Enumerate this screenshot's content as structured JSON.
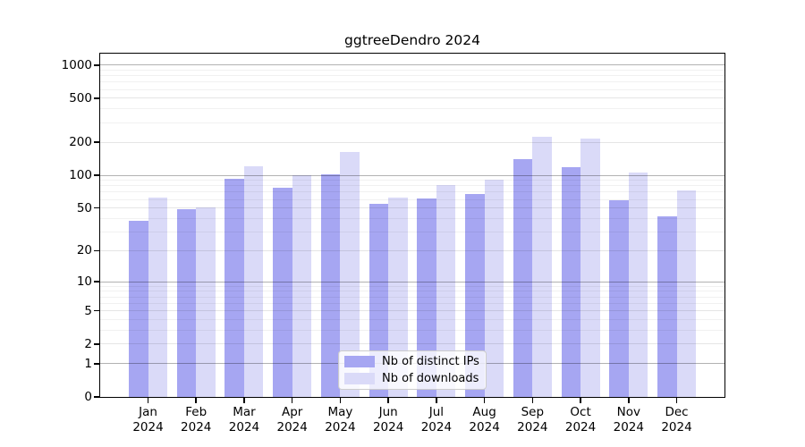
{
  "chart_data": {
    "type": "bar",
    "title": "ggtreeDendro 2024",
    "year_label": "2024",
    "categories": [
      "Jan",
      "Feb",
      "Mar",
      "Apr",
      "May",
      "Jun",
      "Jul",
      "Aug",
      "Sep",
      "Oct",
      "Nov",
      "Dec"
    ],
    "series": [
      {
        "name": "Nb of distinct IPs",
        "color": "#a6a6f2",
        "values": [
          38,
          49,
          93,
          77,
          102,
          55,
          61,
          67,
          140,
          119,
          59,
          42
        ]
      },
      {
        "name": "Nb of downloads",
        "color": "#dadaf8",
        "values": [
          62,
          51,
          120,
          100,
          163,
          63,
          81,
          91,
          224,
          215,
          105,
          72
        ]
      }
    ],
    "yscale": "log10(value+1)",
    "yticks": [
      0,
      1,
      2,
      5,
      10,
      20,
      50,
      100,
      200,
      500,
      1000
    ],
    "ylim": [
      0,
      1000
    ],
    "xlabel": "",
    "ylabel": "",
    "grid": "on",
    "legend_position": "bottom-center"
  }
}
